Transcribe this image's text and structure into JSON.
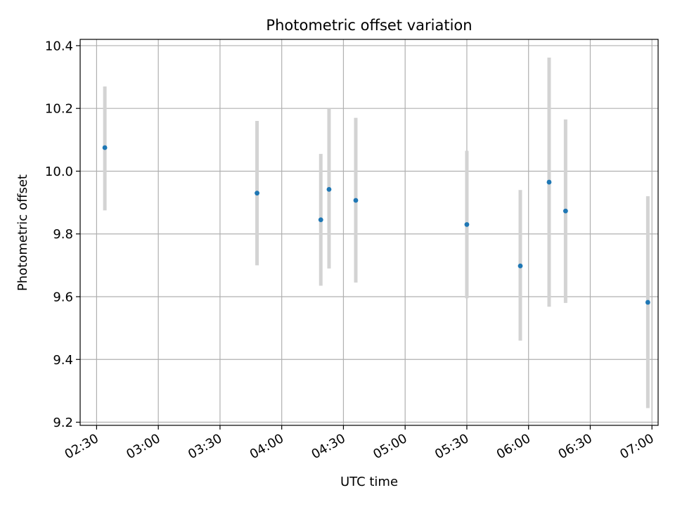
{
  "chart_data": {
    "type": "scatter",
    "title": "Photometric offset variation",
    "xlabel": "UTC time",
    "ylabel": "Photometric offset",
    "x_axis": {
      "type": "time",
      "range": [
        "02:22",
        "07:03"
      ],
      "ticks": [
        "02:30",
        "03:00",
        "03:30",
        "04:00",
        "04:30",
        "05:00",
        "05:30",
        "06:00",
        "06:30",
        "07:00"
      ]
    },
    "y_axis": {
      "range": [
        9.19,
        10.42
      ],
      "ticks": [
        "9.2",
        "9.4",
        "9.6",
        "9.8",
        "10.0",
        "10.2",
        "10.4"
      ]
    },
    "grid": true,
    "points": [
      {
        "x": "02:34",
        "y": 10.075,
        "yerr_low": 9.875,
        "yerr_high": 10.27
      },
      {
        "x": "03:48",
        "y": 9.93,
        "yerr_low": 9.7,
        "yerr_high": 10.16
      },
      {
        "x": "04:19",
        "y": 9.845,
        "yerr_low": 9.635,
        "yerr_high": 10.055
      },
      {
        "x": "04:23",
        "y": 9.942,
        "yerr_low": 9.69,
        "yerr_high": 10.2
      },
      {
        "x": "04:36",
        "y": 9.907,
        "yerr_low": 9.645,
        "yerr_high": 10.17
      },
      {
        "x": "05:30",
        "y": 9.83,
        "yerr_low": 9.595,
        "yerr_high": 10.065
      },
      {
        "x": "05:56",
        "y": 9.698,
        "yerr_low": 9.46,
        "yerr_high": 9.94
      },
      {
        "x": "06:10",
        "y": 9.965,
        "yerr_low": 9.568,
        "yerr_high": 10.362
      },
      {
        "x": "06:18",
        "y": 9.873,
        "yerr_low": 9.58,
        "yerr_high": 10.165
      },
      {
        "x": "06:58",
        "y": 9.582,
        "yerr_low": 9.245,
        "yerr_high": 9.92
      }
    ],
    "colors": {
      "marker": "#1f77b4",
      "errorbar": "#d3d3d3",
      "grid": "#b0b0b0",
      "axis": "#000000"
    }
  }
}
